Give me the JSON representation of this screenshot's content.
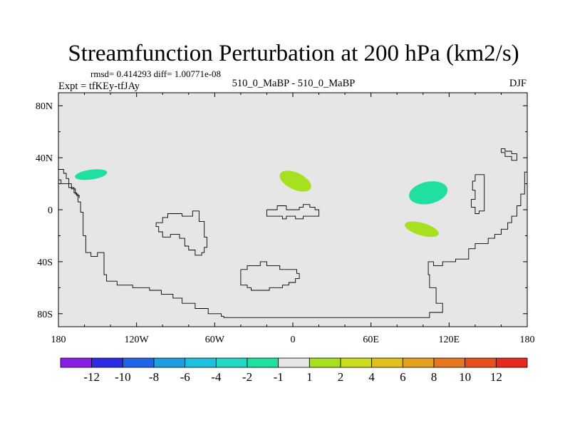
{
  "chart_data": {
    "type": "heatmap",
    "title": "Streamfunction Perturbation at 200 hPa (km2/s)",
    "stats": "rmsd= 0.414293 diff= 1.00771e-08",
    "left_label": "Expt = tfKEy-tfJAy",
    "center_label": "510_0_MaBP - 510_0_MaBP",
    "right_label": "DJF",
    "x_ticks": [
      {
        "value": -180,
        "label": "180"
      },
      {
        "value": -120,
        "label": "120W"
      },
      {
        "value": -60,
        "label": "60W"
      },
      {
        "value": 0,
        "label": "0"
      },
      {
        "value": 60,
        "label": "60E"
      },
      {
        "value": 120,
        "label": "120E"
      },
      {
        "value": 180,
        "label": "180"
      }
    ],
    "y_ticks": [
      {
        "value": 80,
        "label": "80N"
      },
      {
        "value": 40,
        "label": "40N"
      },
      {
        "value": 0,
        "label": "0"
      },
      {
        "value": -40,
        "label": "40S"
      },
      {
        "value": -80,
        "label": "80S"
      }
    ],
    "xlim": [
      -180,
      180
    ],
    "ylim": [
      -90,
      90
    ],
    "background_color": "#e6e6e6",
    "colorbar": {
      "labels": [
        "-12",
        "-10",
        "-8",
        "-6",
        "-4",
        "-2",
        "-1",
        "1",
        "2",
        "4",
        "6",
        "8",
        "10",
        "12"
      ],
      "colors": [
        "#8a1ee6",
        "#2d2be6",
        "#1f66e6",
        "#1c9ee0",
        "#1fc0dd",
        "#22d8c4",
        "#1fe0a0",
        "#e6e6e6",
        "#a6e01f",
        "#c9dc1f",
        "#e0c01f",
        "#e6a01f",
        "#e6761f",
        "#e6501f",
        "#e62a1f"
      ]
    },
    "anomalies": [
      {
        "lon": -155,
        "lat": 27,
        "rx": 12.5,
        "ry": 3.8,
        "rotate": -8,
        "color": "#1fe0a0"
      },
      {
        "lon": 2,
        "lat": 22,
        "rx": 13,
        "ry": 6.5,
        "rotate": 25,
        "color": "#a6e01f"
      },
      {
        "lon": 104,
        "lat": 13,
        "rx": 15,
        "ry": 8.5,
        "rotate": -12,
        "color": "#1fe0a0"
      },
      {
        "lon": 99,
        "lat": -15,
        "rx": 13.5,
        "ry": 4.8,
        "rotate": 16,
        "color": "#a6e01f"
      }
    ],
    "coastlines": [
      [
        [
          -180,
          31
        ],
        [
          -176,
          31
        ],
        [
          -176,
          28
        ],
        [
          -174,
          28
        ],
        [
          -174,
          24
        ],
        [
          -172,
          24
        ],
        [
          -172,
          20
        ],
        [
          -170,
          20
        ],
        [
          -170,
          16
        ],
        [
          -167,
          16
        ],
        [
          -167,
          12
        ],
        [
          -165,
          12
        ],
        [
          -165,
          6
        ],
        [
          -163,
          6
        ],
        [
          -163,
          -2
        ],
        [
          -161,
          -2
        ],
        [
          -161,
          -20
        ],
        [
          -159,
          -20
        ],
        [
          -159,
          -33
        ],
        [
          -155,
          -33
        ],
        [
          -155,
          -36
        ],
        [
          -150,
          -36
        ],
        [
          -150,
          -33
        ],
        [
          -145,
          -33
        ],
        [
          -145,
          -50
        ],
        [
          -143,
          -50
        ],
        [
          -143,
          -55
        ],
        [
          -135,
          -55
        ],
        [
          -135,
          -58
        ],
        [
          -123,
          -58
        ],
        [
          -123,
          -60
        ],
        [
          -110,
          -60
        ],
        [
          -110,
          -62
        ],
        [
          -101,
          -62
        ],
        [
          -101,
          -65
        ],
        [
          -92,
          -65
        ],
        [
          -92,
          -68
        ],
        [
          -85,
          -68
        ],
        [
          -85,
          -72
        ],
        [
          -75,
          -72
        ],
        [
          -75,
          -76
        ],
        [
          -65,
          -76
        ],
        [
          -65,
          -80
        ],
        [
          -55,
          -80
        ],
        [
          -55,
          -82
        ],
        [
          -53,
          -82
        ],
        [
          -53,
          -83
        ],
        [
          105,
          -83
        ],
        [
          105,
          -79
        ],
        [
          115,
          -79
        ],
        [
          115,
          -72
        ],
        [
          110,
          -72
        ],
        [
          110,
          -60
        ],
        [
          105,
          -60
        ],
        [
          105,
          -50
        ],
        [
          104,
          -50
        ],
        [
          104,
          -40
        ],
        [
          108,
          -40
        ],
        [
          108,
          -43
        ],
        [
          115,
          -43
        ],
        [
          115,
          -40
        ],
        [
          125,
          -40
        ],
        [
          125,
          -38
        ],
        [
          135,
          -38
        ],
        [
          135,
          -30
        ],
        [
          140,
          -30
        ],
        [
          140,
          -26
        ],
        [
          150,
          -26
        ],
        [
          150,
          -22
        ],
        [
          155,
          -22
        ],
        [
          155,
          -19
        ],
        [
          160,
          -19
        ],
        [
          160,
          -15
        ],
        [
          165,
          -15
        ],
        [
          165,
          -10
        ],
        [
          168,
          -10
        ],
        [
          168,
          -5
        ],
        [
          172,
          -5
        ],
        [
          172,
          3
        ],
        [
          175,
          3
        ],
        [
          175,
          12
        ],
        [
          178,
          12
        ],
        [
          178,
          29
        ],
        [
          180,
          29
        ]
      ],
      [
        [
          -185,
          23
        ],
        [
          -178,
          23
        ],
        [
          -178,
          20
        ],
        [
          -172,
          20
        ],
        [
          -172,
          17
        ],
        [
          -168,
          17
        ],
        [
          -168,
          13
        ],
        [
          -166,
          13
        ],
        [
          -166,
          11
        ],
        [
          -164,
          11
        ],
        [
          -164,
          9
        ]
      ],
      [
        [
          -105,
          -10
        ],
        [
          -100,
          -10
        ],
        [
          -100,
          -6
        ],
        [
          -96,
          -6
        ],
        [
          -96,
          -3
        ],
        [
          -85,
          -3
        ],
        [
          -85,
          -5
        ],
        [
          -77,
          -5
        ],
        [
          -77,
          -1
        ],
        [
          -72,
          -1
        ],
        [
          -72,
          -9
        ],
        [
          -68,
          -9
        ],
        [
          -68,
          -21
        ],
        [
          -66,
          -21
        ],
        [
          -66,
          -29
        ],
        [
          -68,
          -29
        ],
        [
          -68,
          -33
        ],
        [
          -70,
          -33
        ],
        [
          -70,
          -35
        ],
        [
          -75,
          -35
        ],
        [
          -75,
          -31
        ],
        [
          -80,
          -31
        ],
        [
          -80,
          -28
        ],
        [
          -83,
          -28
        ],
        [
          -83,
          -22
        ],
        [
          -87,
          -22
        ],
        [
          -87,
          -19
        ],
        [
          -94,
          -19
        ],
        [
          -94,
          -21
        ],
        [
          -100,
          -21
        ],
        [
          -100,
          -17
        ],
        [
          -103,
          -17
        ],
        [
          -103,
          -13
        ],
        [
          -105,
          -13
        ],
        [
          -105,
          -10
        ]
      ],
      [
        [
          -40,
          -46
        ],
        [
          -35,
          -46
        ],
        [
          -35,
          -43
        ],
        [
          -25,
          -43
        ],
        [
          -25,
          -40
        ],
        [
          -20,
          -40
        ],
        [
          -20,
          -43
        ],
        [
          -10,
          -43
        ],
        [
          -10,
          -46
        ],
        [
          3,
          -46
        ],
        [
          3,
          -49
        ],
        [
          5,
          -49
        ],
        [
          5,
          -53
        ],
        [
          2,
          -53
        ],
        [
          2,
          -56
        ],
        [
          -3,
          -56
        ],
        [
          -3,
          -58
        ],
        [
          -8,
          -58
        ],
        [
          -8,
          -60
        ],
        [
          -18,
          -60
        ],
        [
          -18,
          -62
        ],
        [
          -32,
          -62
        ],
        [
          -32,
          -60
        ],
        [
          -35,
          -60
        ],
        [
          -35,
          -58
        ],
        [
          -40,
          -58
        ],
        [
          -40,
          -46
        ]
      ],
      [
        [
          -20,
          0
        ],
        [
          -12,
          0
        ],
        [
          -12,
          3
        ],
        [
          -5,
          3
        ],
        [
          -5,
          0
        ],
        [
          5,
          0
        ],
        [
          5,
          2
        ],
        [
          8,
          2
        ],
        [
          8,
          4
        ],
        [
          13,
          4
        ],
        [
          13,
          2
        ],
        [
          17,
          2
        ],
        [
          17,
          0
        ],
        [
          20,
          0
        ],
        [
          20,
          -5
        ],
        [
          8,
          -5
        ],
        [
          8,
          -7
        ],
        [
          2,
          -7
        ],
        [
          2,
          -5
        ],
        [
          -5,
          -5
        ],
        [
          -5,
          -7
        ],
        [
          -8,
          -7
        ],
        [
          -8,
          -5
        ],
        [
          -20,
          -5
        ],
        [
          -20,
          0
        ]
      ],
      [
        [
          140,
          27
        ],
        [
          147,
          27
        ],
        [
          147,
          -1
        ],
        [
          143,
          -1
        ],
        [
          143,
          -3
        ],
        [
          140,
          -3
        ],
        [
          140,
          2
        ],
        [
          137,
          2
        ],
        [
          137,
          8
        ],
        [
          140,
          8
        ],
        [
          140,
          15
        ],
        [
          138,
          15
        ],
        [
          138,
          22
        ],
        [
          140,
          22
        ],
        [
          140,
          27
        ]
      ],
      [
        [
          160,
          47
        ],
        [
          163,
          47
        ],
        [
          163,
          45
        ],
        [
          168,
          45
        ],
        [
          168,
          43
        ],
        [
          172,
          43
        ],
        [
          172,
          38
        ],
        [
          168,
          38
        ],
        [
          168,
          41
        ],
        [
          163,
          41
        ],
        [
          163,
          44
        ],
        [
          160,
          44
        ],
        [
          160,
          47
        ]
      ]
    ]
  }
}
